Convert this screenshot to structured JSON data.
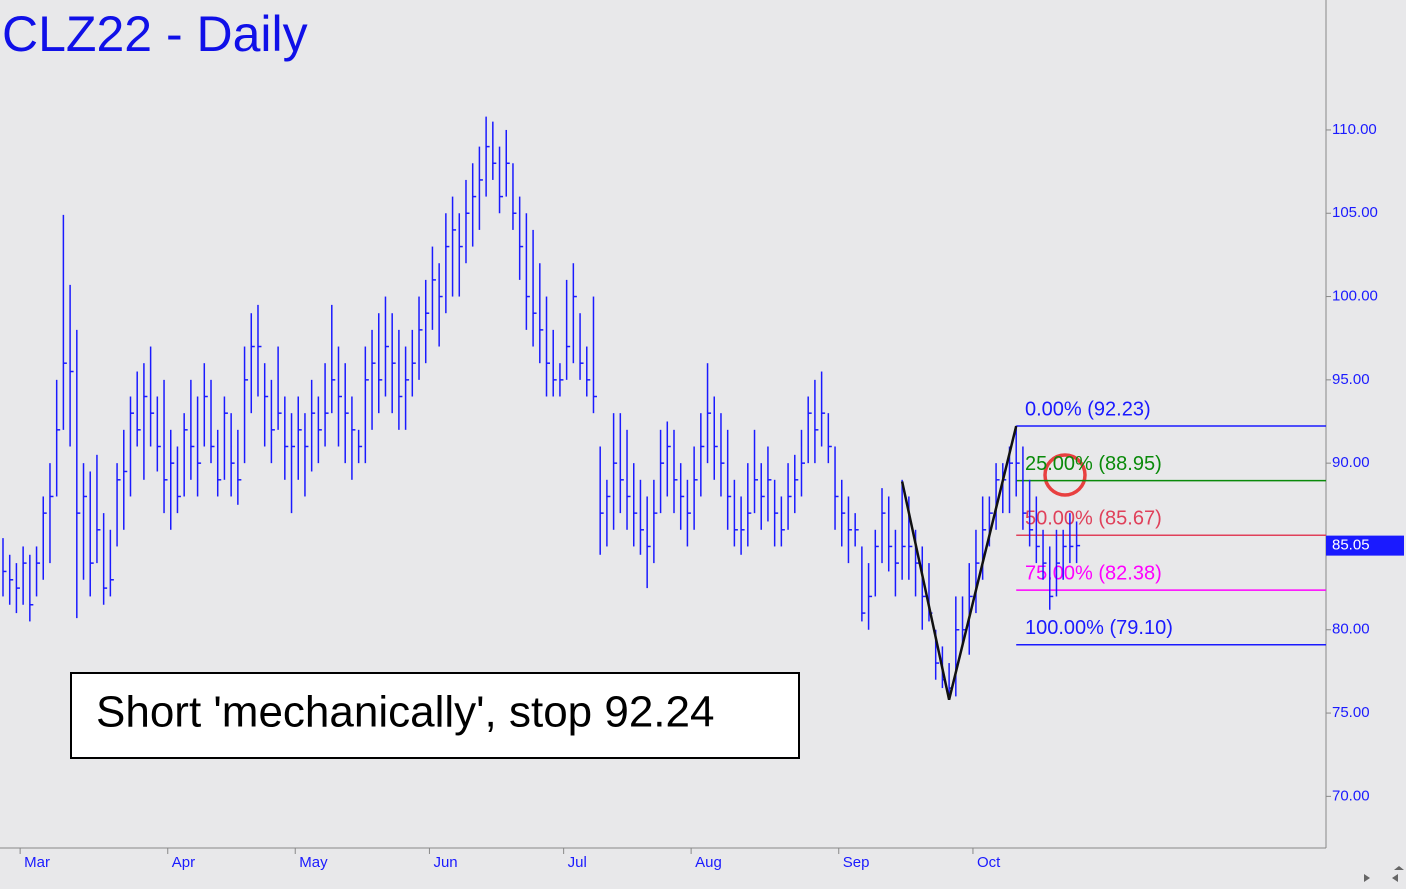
{
  "chart_data": {
    "type": "ohlc",
    "title": "CLZ22 - Daily",
    "annotation": "Short 'mechanically', stop 92.24",
    "color": "#1a1aff",
    "categories": [
      null,
      null,
      null,
      "Mar",
      null,
      null,
      null,
      null,
      null,
      null,
      null,
      null,
      null,
      null,
      null,
      null,
      null,
      null,
      null,
      null,
      null,
      null,
      null,
      null,
      null,
      "Apr",
      null,
      null,
      null,
      null,
      null,
      null,
      null,
      null,
      null,
      null,
      null,
      null,
      null,
      null,
      null,
      null,
      null,
      null,
      "May",
      null,
      null,
      null,
      null,
      null,
      null,
      null,
      null,
      null,
      null,
      null,
      null,
      null,
      null,
      null,
      null,
      null,
      null,
      null,
      "Jun",
      null,
      null,
      null,
      null,
      null,
      null,
      null,
      null,
      null,
      null,
      null,
      null,
      null,
      null,
      null,
      null,
      null,
      null,
      null,
      "Jul",
      null,
      null,
      null,
      null,
      null,
      null,
      null,
      null,
      null,
      null,
      null,
      null,
      null,
      null,
      null,
      null,
      null,
      null,
      "Aug",
      null,
      null,
      null,
      null,
      null,
      null,
      null,
      null,
      null,
      null,
      null,
      null,
      null,
      null,
      null,
      null,
      null,
      null,
      null,
      null,
      null,
      "Sep",
      null,
      null,
      null,
      null,
      null,
      null,
      null,
      null,
      null,
      null,
      null,
      null,
      null,
      null,
      null,
      null,
      null,
      null,
      null,
      "Oct",
      null,
      null,
      null,
      null,
      null,
      null,
      null,
      null,
      null,
      null,
      null,
      null,
      null,
      null,
      null
    ],
    "high": [
      85.5,
      84.5,
      84,
      85,
      84.5,
      85,
      88,
      90,
      95,
      104.9,
      100.7,
      98,
      90,
      89.5,
      90.5,
      87,
      86,
      90,
      92,
      94,
      95.5,
      96,
      97,
      94,
      95,
      92,
      91,
      93,
      95,
      94,
      96,
      95,
      92,
      94,
      93,
      92,
      97,
      99,
      99.5,
      96,
      95,
      97,
      94,
      93,
      94,
      93,
      95,
      94,
      96,
      99.5,
      97,
      96,
      94,
      92,
      97,
      98,
      99,
      100,
      99,
      98,
      97,
      98,
      100,
      101,
      103,
      102,
      105,
      106,
      105,
      107,
      108,
      109,
      110.8,
      110.5,
      109,
      110,
      108,
      106,
      105,
      104,
      102,
      100,
      98,
      96,
      101,
      102,
      99,
      97,
      100,
      91,
      89,
      93,
      93,
      92,
      90,
      89,
      88,
      89,
      92,
      92.5,
      92,
      90,
      89,
      91,
      93,
      96,
      94,
      93,
      92,
      89,
      88,
      90,
      92,
      90,
      91,
      89,
      88,
      90,
      90.5,
      92,
      94,
      95,
      95.5,
      93,
      91,
      89,
      88,
      87,
      85,
      84,
      86,
      88.5,
      88,
      86,
      89,
      88,
      86,
      85,
      84,
      80,
      79,
      78,
      82,
      82,
      84,
      86,
      88,
      88,
      90,
      90,
      91,
      92.23,
      91,
      89,
      88,
      86,
      85,
      86,
      86,
      87,
      86.5
    ],
    "low": [
      82,
      81.5,
      81,
      81.5,
      80.5,
      82,
      83,
      84,
      88,
      92,
      91,
      80.7,
      83,
      82,
      84,
      81.5,
      82,
      85,
      86,
      88,
      91,
      89,
      91,
      89.5,
      87,
      86,
      87,
      88,
      89,
      88,
      91,
      90,
      88,
      89,
      88,
      87.5,
      90,
      93,
      94,
      91,
      90,
      92,
      89,
      87,
      89,
      88,
      89.5,
      90,
      91,
      93,
      91,
      90,
      89,
      90,
      90,
      92,
      93,
      94,
      93,
      92,
      92,
      94,
      95,
      96,
      98,
      97,
      99,
      100,
      100,
      102,
      103,
      104,
      106,
      107,
      105,
      106,
      104,
      101,
      98,
      97,
      96,
      94,
      94,
      94,
      95,
      96,
      95,
      94,
      93,
      84.5,
      85,
      86,
      87,
      86,
      85,
      84.5,
      82.5,
      84,
      87,
      88,
      87,
      86,
      85,
      86,
      88,
      90,
      89,
      88,
      86,
      85,
      84.5,
      85,
      87,
      86,
      86.5,
      85,
      85,
      86,
      87,
      88,
      90,
      90,
      91,
      90,
      86,
      85,
      84,
      85,
      80.5,
      80,
      82,
      84,
      83.5,
      82,
      83,
      83,
      82,
      80,
      80.5,
      77,
      76.5,
      75.8,
      76,
      79,
      78.5,
      81,
      83,
      85,
      86,
      87,
      87,
      88,
      86,
      85,
      84,
      83,
      81.2,
      82,
      83,
      84,
      84
    ],
    "close": [
      83.5,
      83,
      82.5,
      84,
      81.5,
      84,
      87,
      88,
      92,
      96,
      95.5,
      87,
      88,
      84,
      86,
      82.5,
      83,
      89,
      89.5,
      93,
      92,
      94,
      93,
      91,
      89,
      90,
      88,
      92,
      91,
      90,
      94,
      91,
      89,
      93,
      90,
      89,
      95,
      97,
      97,
      94,
      92,
      93,
      91,
      91,
      92,
      91,
      93,
      92,
      93,
      95,
      94,
      93,
      92,
      91,
      95,
      96,
      95,
      97,
      96,
      94,
      95,
      96,
      98,
      99,
      101,
      100,
      103,
      104,
      103,
      105,
      106,
      107,
      109,
      108,
      106,
      108,
      105,
      103,
      100,
      99,
      98,
      96,
      95,
      95,
      97,
      100,
      96,
      95,
      94,
      87,
      88,
      90,
      89,
      88,
      87,
      86,
      85,
      87,
      90,
      91,
      89,
      88,
      87,
      89,
      91,
      93,
      91,
      90,
      88,
      86,
      86,
      87,
      89,
      88,
      89,
      87,
      86,
      88,
      89,
      90,
      93,
      92,
      93,
      91,
      88,
      87,
      86,
      86,
      81,
      82,
      85,
      87,
      85,
      84,
      85,
      85,
      84,
      82,
      81,
      78,
      77,
      76.5,
      80,
      80,
      82,
      84,
      86,
      87,
      89,
      89,
      90,
      90,
      87,
      86,
      85,
      84,
      82,
      84,
      85,
      85,
      85.05
    ],
    "zigzag": {
      "x": [
        134,
        141,
        151
      ],
      "y": [
        88.9,
        75.8,
        92.23
      ]
    },
    "fib_levels": [
      {
        "label": "0.00% (92.23)",
        "value": 92.23,
        "color": "#1a1aff"
      },
      {
        "label": "25.00% (88.95)",
        "value": 88.95,
        "color": "#0a8a0a"
      },
      {
        "label": "50.00% (85.67)",
        "value": 85.67,
        "color": "#e0405a"
      },
      {
        "label": "75.00% (82.38)",
        "value": 82.38,
        "color": "#ff00ff"
      },
      {
        "label": "100.00% (79.10)",
        "value": 79.1,
        "color": "#1a1aff"
      }
    ],
    "ylim": [
      66.9,
      117.8
    ],
    "yticks": [
      {
        "value": 70,
        "label": "70.00"
      },
      {
        "value": 75,
        "label": "75.00"
      },
      {
        "value": 80,
        "label": "80.00"
      },
      {
        "value": 85,
        "label": "85.00"
      },
      {
        "value": 90,
        "label": "90.00"
      },
      {
        "value": 95,
        "label": "95.00"
      },
      {
        "value": 100,
        "label": "100.00"
      },
      {
        "value": 105,
        "label": "105.00"
      },
      {
        "value": 110,
        "label": "110.00"
      }
    ]
  }
}
